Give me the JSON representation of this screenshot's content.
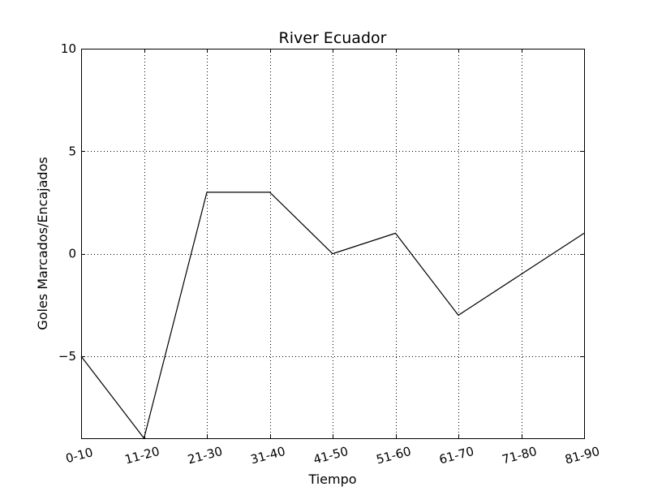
{
  "chart_data": {
    "type": "line",
    "title": "River Ecuador",
    "xlabel": "Tiempo",
    "ylabel": "Goles Marcados/Encajados",
    "categories": [
      "0-10",
      "11-20",
      "21-30",
      "31-40",
      "41-50",
      "51-60",
      "61-70",
      "71-80",
      "81-90"
    ],
    "series": [
      {
        "values": [
          -5,
          -9,
          3,
          3,
          0,
          1,
          -3,
          -1,
          1
        ],
        "color": "#000000"
      }
    ],
    "ylim": [
      -9,
      10
    ],
    "yticks": [
      -5,
      0,
      5,
      10
    ],
    "ytick_labels": [
      "−5",
      "0",
      "5",
      "10"
    ],
    "grid": true
  }
}
